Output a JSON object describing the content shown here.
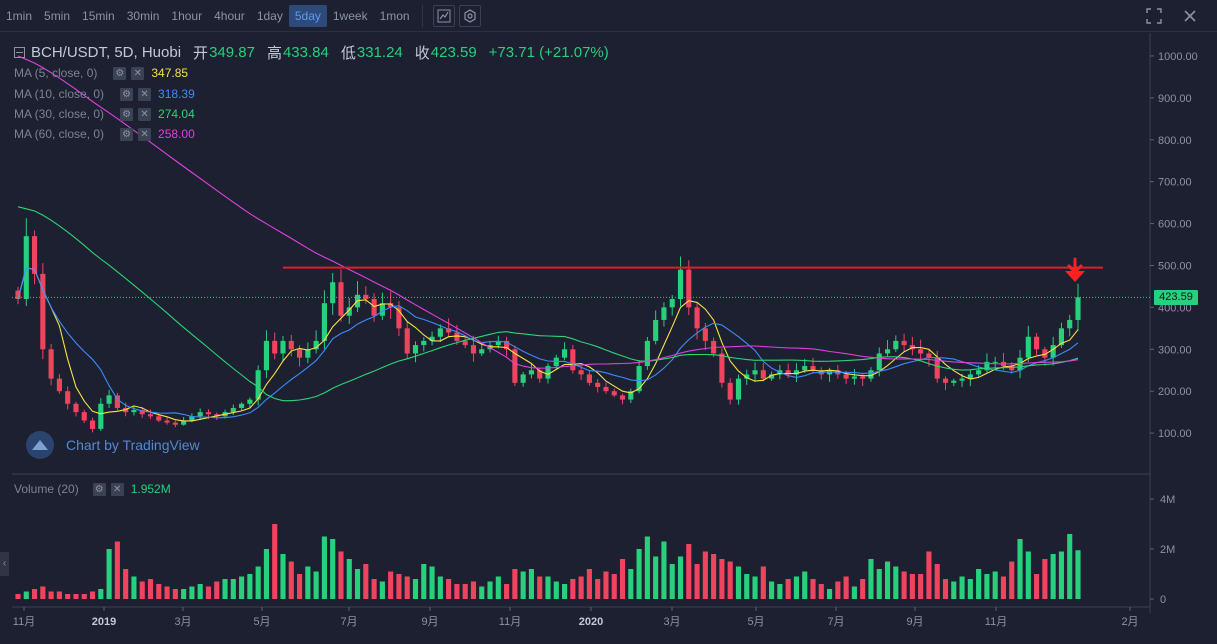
{
  "toolbar": {
    "timeframes": [
      "1min",
      "5min",
      "15min",
      "30min",
      "1hour",
      "4hour",
      "1day",
      "5day",
      "1week",
      "1mon"
    ],
    "active_timeframe": "5day",
    "icons": [
      "chart-type-icon",
      "settings-icon",
      "fullscreen-icon",
      "close-icon"
    ]
  },
  "legend": {
    "symbol": "BCH/USDT, 5D, Huobi",
    "open_label": "开",
    "open": "349.87",
    "high_label": "高",
    "high": "433.84",
    "low_label": "低",
    "low": "331.24",
    "close_label": "收",
    "close": "423.59",
    "change": "+73.71 (+21.07%)"
  },
  "ma": [
    {
      "label": "MA (5, close, 0)",
      "value": "347.85",
      "color": "#f5e342"
    },
    {
      "label": "MA (10, close, 0)",
      "value": "318.39",
      "color": "#3d8bfd"
    },
    {
      "label": "MA (30, close, 0)",
      "value": "274.04",
      "color": "#2ed573"
    },
    {
      "label": "MA (60, close, 0)",
      "value": "258.00",
      "color": "#e040e0"
    }
  ],
  "volume": {
    "label": "Volume (20)",
    "value": "1.952M"
  },
  "watermark": "Chart by TradingView",
  "last_price_tag": "423.59",
  "colors": {
    "up": "#26d07c",
    "down": "#f0435e",
    "resistance": "#e01e2a",
    "arrow": "#ff2222",
    "bg": "#1c2030"
  },
  "chart_data": {
    "type": "candlestick",
    "y_ticks": [
      "1000.00",
      "900.00",
      "800.00",
      "700.00",
      "600.00",
      "500.00",
      "400.00",
      "300.00",
      "200.00",
      "100.00"
    ],
    "vol_ticks": [
      "4M",
      "2M",
      "0"
    ],
    "x_ticks": [
      "11月",
      "2019",
      "3月",
      "5月",
      "7月",
      "9月",
      "11月",
      "2020",
      "3月",
      "5月",
      "7月",
      "9月",
      "11月",
      "2月"
    ],
    "ylim": [
      0,
      1050
    ],
    "resistance_level": 495,
    "close": [
      420,
      570,
      480,
      300,
      230,
      200,
      170,
      150,
      130,
      110,
      170,
      190,
      160,
      150,
      155,
      145,
      140,
      130,
      125,
      120,
      130,
      140,
      150,
      145,
      140,
      150,
      160,
      170,
      180,
      250,
      320,
      290,
      320,
      300,
      280,
      300,
      320,
      410,
      460,
      380,
      400,
      430,
      420,
      380,
      410,
      400,
      350,
      290,
      310,
      320,
      330,
      350,
      340,
      320,
      310,
      290,
      300,
      310,
      320,
      300,
      220,
      240,
      250,
      230,
      260,
      280,
      300,
      250,
      240,
      220,
      210,
      200,
      190,
      180,
      200,
      260,
      320,
      370,
      400,
      420,
      490,
      400,
      350,
      320,
      290,
      220,
      180,
      230,
      240,
      250,
      230,
      240,
      250,
      240,
      250,
      260,
      250,
      240,
      250,
      240,
      230,
      235,
      230,
      250,
      290,
      300,
      320,
      310,
      300,
      290,
      280,
      230,
      220,
      225,
      230,
      240,
      250,
      270,
      270,
      260,
      250,
      280,
      330,
      300,
      280,
      310,
      350,
      370,
      424
    ],
    "volume_millions": [
      0.2,
      0.3,
      0.4,
      0.5,
      0.3,
      0.3,
      0.2,
      0.2,
      0.2,
      0.3,
      0.4,
      2.0,
      2.3,
      1.2,
      0.9,
      0.7,
      0.8,
      0.6,
      0.5,
      0.4,
      0.4,
      0.5,
      0.6,
      0.5,
      0.7,
      0.8,
      0.8,
      0.9,
      1.0,
      1.3,
      2.0,
      3.0,
      1.8,
      1.5,
      1.0,
      1.3,
      1.1,
      2.5,
      2.4,
      1.9,
      1.6,
      1.2,
      1.4,
      0.8,
      0.7,
      1.1,
      1.0,
      0.9,
      0.8,
      1.4,
      1.3,
      0.9,
      0.8,
      0.6,
      0.6,
      0.7,
      0.5,
      0.7,
      0.9,
      0.6,
      1.2,
      1.1,
      1.2,
      0.9,
      0.9,
      0.7,
      0.6,
      0.8,
      0.9,
      1.2,
      0.8,
      1.1,
      1.0,
      1.6,
      1.2,
      2.0,
      2.5,
      1.7,
      2.3,
      1.4,
      1.7,
      2.2,
      1.4,
      1.9,
      1.8,
      1.6,
      1.5,
      1.3,
      1.0,
      0.9,
      1.3,
      0.7,
      0.6,
      0.8,
      0.9,
      1.1,
      0.8,
      0.6,
      0.4,
      0.7,
      0.9,
      0.5,
      0.8,
      1.6,
      1.2,
      1.5,
      1.3,
      1.1,
      1.0,
      1.0,
      1.9,
      1.4,
      0.8,
      0.7,
      0.9,
      0.8,
      1.2,
      1.0,
      1.1,
      0.9,
      1.5,
      2.4,
      1.9,
      1.0,
      1.6,
      1.8,
      1.9,
      2.6,
      1.95
    ],
    "ma_values": {
      "ma5": "347.85",
      "ma10": "318.39",
      "ma30": "274.04",
      "ma60": "258.00"
    }
  }
}
